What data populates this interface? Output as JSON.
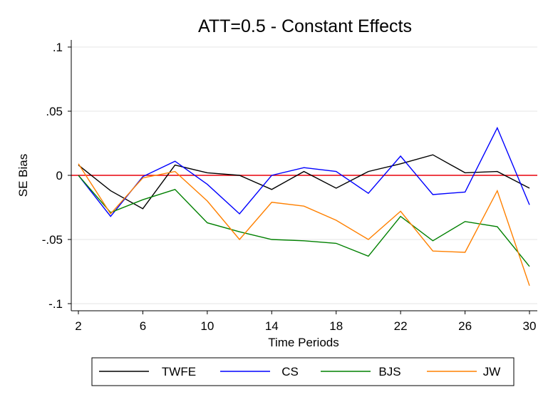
{
  "chart_data": {
    "type": "line",
    "title": "ATT=0.5 - Constant Effects",
    "xlabel": "Time Periods",
    "ylabel": "SE Bias",
    "xlim": [
      2,
      30
    ],
    "ylim": [
      -0.1,
      0.1
    ],
    "x_ticks": [
      2,
      6,
      10,
      14,
      18,
      22,
      26,
      30
    ],
    "x_tick_labels": [
      "2",
      "6",
      "10",
      "14",
      "18",
      "22",
      "26",
      "30"
    ],
    "y_ticks": [
      -0.1,
      -0.05,
      0,
      0.05,
      0.1
    ],
    "y_tick_labels": [
      "-.1",
      "-.05",
      "0",
      ".05",
      ".1"
    ],
    "grid": true,
    "reference_line": {
      "y": 0,
      "color": "#e8000b"
    },
    "legend_position": "bottom",
    "x": [
      2,
      4,
      6,
      8,
      10,
      12,
      14,
      16,
      18,
      20,
      22,
      24,
      26,
      28,
      30
    ],
    "series": [
      {
        "name": "TWFE",
        "color": "#000000",
        "values": [
          0.008,
          -0.012,
          -0.026,
          0.008,
          0.002,
          0.0,
          -0.011,
          0.003,
          -0.01,
          0.003,
          0.009,
          0.016,
          0.002,
          0.003,
          -0.01
        ]
      },
      {
        "name": "CS",
        "color": "#0000ff",
        "values": [
          0.0,
          -0.032,
          -0.001,
          0.011,
          -0.007,
          -0.03,
          0.0,
          0.006,
          0.003,
          -0.014,
          0.015,
          -0.015,
          -0.013,
          0.037,
          -0.023
        ]
      },
      {
        "name": "BJS",
        "color": "#008000",
        "values": [
          0.0,
          -0.029,
          -0.019,
          -0.011,
          -0.037,
          -0.044,
          -0.05,
          -0.051,
          -0.053,
          -0.063,
          -0.032,
          -0.051,
          -0.036,
          -0.04,
          -0.071
        ]
      },
      {
        "name": "JW",
        "color": "#ff8000",
        "values": [
          0.009,
          -0.03,
          -0.002,
          0.003,
          -0.02,
          -0.05,
          -0.021,
          -0.024,
          -0.035,
          -0.05,
          -0.028,
          -0.059,
          -0.06,
          -0.012,
          -0.086
        ]
      }
    ]
  }
}
